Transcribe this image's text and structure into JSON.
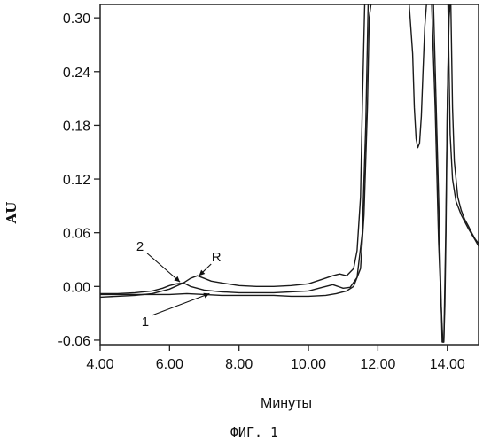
{
  "caption": "ФИГ. 1",
  "chart_data": {
    "type": "line",
    "title": "",
    "xlabel": "Минуты",
    "ylabel": "AU",
    "xlim": [
      4.0,
      14.9
    ],
    "ylim": [
      -0.065,
      0.315
    ],
    "xticks": [
      4.0,
      6.0,
      8.0,
      10.0,
      12.0,
      14.0
    ],
    "xtick_labels": [
      "4.00",
      "6.00",
      "8.00",
      "10.00",
      "12.00",
      "14.00"
    ],
    "yticks": [
      -0.06,
      0.0,
      0.06,
      0.12,
      0.18,
      0.24,
      0.3
    ],
    "ytick_labels": [
      "-0.06",
      "0.00",
      "0.06",
      "0.12",
      "0.18",
      "0.24",
      "0.30"
    ],
    "grid": false,
    "line_color": "#1a1a1a",
    "series": [
      {
        "name": "1",
        "x": [
          4.0,
          4.5,
          5.0,
          5.5,
          6.0,
          6.5,
          7.0,
          7.5,
          8.0,
          8.5,
          9.0,
          9.5,
          10.0,
          10.5,
          10.8,
          11.1,
          11.3,
          11.5,
          11.6,
          11.7,
          11.75,
          11.8
        ],
        "y": [
          -0.009,
          -0.009,
          -0.009,
          -0.009,
          -0.009,
          -0.008,
          -0.009,
          -0.01,
          -0.01,
          -0.01,
          -0.01,
          -0.011,
          -0.011,
          -0.01,
          -0.008,
          -0.005,
          0.0,
          0.02,
          0.08,
          0.2,
          0.3,
          0.315
        ]
      },
      {
        "name": "2",
        "x": [
          4.0,
          4.5,
          5.0,
          5.5,
          5.8,
          6.0,
          6.2,
          6.4,
          6.6,
          7.0,
          7.5,
          8.0,
          8.5,
          9.0,
          9.5,
          10.0,
          10.4,
          10.7,
          11.0,
          11.2,
          11.4,
          11.55,
          11.65,
          11.72
        ],
        "y": [
          -0.008,
          -0.008,
          -0.007,
          -0.005,
          -0.002,
          0.001,
          0.003,
          0.004,
          0.0,
          -0.004,
          -0.006,
          -0.007,
          -0.007,
          -0.007,
          -0.006,
          -0.005,
          -0.001,
          0.002,
          -0.002,
          -0.001,
          0.01,
          0.06,
          0.18,
          0.315
        ]
      },
      {
        "name": "R",
        "x": [
          4.0,
          4.5,
          5.0,
          5.5,
          6.0,
          6.4,
          6.6,
          6.8,
          7.0,
          7.2,
          7.5,
          8.0,
          8.5,
          9.0,
          9.5,
          10.0,
          10.4,
          10.7,
          10.9,
          11.1,
          11.3,
          11.4,
          11.5,
          11.55,
          11.62
        ],
        "y": [
          -0.012,
          -0.011,
          -0.01,
          -0.008,
          -0.003,
          0.004,
          0.009,
          0.012,
          0.009,
          0.006,
          0.004,
          0.001,
          0.0,
          0.0,
          0.001,
          0.003,
          0.008,
          0.012,
          0.014,
          0.012,
          0.02,
          0.04,
          0.1,
          0.2,
          0.315
        ]
      },
      {
        "name": "",
        "x": [
          12.9,
          13.0,
          13.05,
          13.1,
          13.15,
          13.2,
          13.25,
          13.3,
          13.35,
          13.4
        ],
        "y": [
          0.315,
          0.26,
          0.2,
          0.165,
          0.155,
          0.16,
          0.19,
          0.24,
          0.29,
          0.315
        ]
      },
      {
        "name": "",
        "x": [
          13.55,
          13.65,
          13.75,
          13.82,
          13.87,
          13.9,
          13.93,
          13.96,
          14.0,
          14.05,
          14.08
        ],
        "y": [
          0.315,
          0.2,
          0.05,
          -0.02,
          -0.062,
          -0.062,
          -0.02,
          0.06,
          0.2,
          0.3,
          0.315
        ]
      },
      {
        "name": "",
        "x": [
          13.6,
          13.75,
          13.85,
          13.9,
          13.95,
          14.0,
          14.05
        ],
        "y": [
          0.315,
          0.1,
          -0.062,
          -0.062,
          0.05,
          0.2,
          0.315
        ]
      },
      {
        "name": "",
        "x": [
          14.1,
          14.15,
          14.2,
          14.3,
          14.4,
          14.5,
          14.6,
          14.7,
          14.8,
          14.9
        ],
        "y": [
          0.315,
          0.2,
          0.14,
          0.1,
          0.085,
          0.075,
          0.068,
          0.06,
          0.053,
          0.048
        ]
      },
      {
        "name": "",
        "x": [
          14.02,
          14.08,
          14.15,
          14.25,
          14.4,
          14.6,
          14.8,
          14.9
        ],
        "y": [
          0.315,
          0.17,
          0.12,
          0.095,
          0.08,
          0.065,
          0.052,
          0.045
        ]
      }
    ],
    "annotations": [
      {
        "text": "2",
        "x": 5.15,
        "y": 0.04,
        "arrow_to": [
          6.3,
          0.005
        ]
      },
      {
        "text": "R",
        "x": 7.35,
        "y": 0.028,
        "arrow_to": [
          6.85,
          0.012
        ]
      },
      {
        "text": "1",
        "x": 5.3,
        "y": -0.044,
        "arrow_to": [
          7.15,
          -0.008
        ]
      }
    ]
  }
}
